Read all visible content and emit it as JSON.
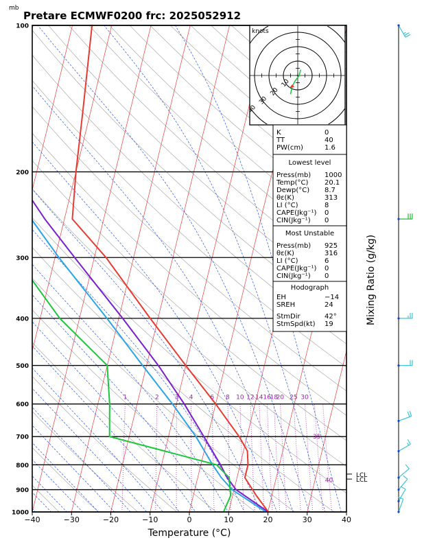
{
  "title": "Pretare ECMWF0200 frc: 2025052912",
  "y_unit_label": "mb",
  "chart_data": {
    "type": "line",
    "subtype": "skew-t log-p sounding",
    "xlabel": "Temperature (°C)",
    "ylabel_right": "Mixing Ratio (g/kg)",
    "x_ticks": [
      -40,
      -30,
      -20,
      -10,
      0,
      10,
      20,
      30,
      40
    ],
    "pressure_levels": [
      100,
      200,
      300,
      400,
      500,
      600,
      700,
      800,
      900,
      1000
    ],
    "xlim": [
      -40,
      40
    ],
    "ylim": [
      1000,
      100
    ],
    "y_scale": "log",
    "series": [],
    "temperature": [
      {
        "p": 1000,
        "t": 20.1
      },
      {
        "p": 925,
        "t": 16
      },
      {
        "p": 850,
        "t": 12
      },
      {
        "p": 800,
        "t": 12
      },
      {
        "p": 750,
        "t": 11
      },
      {
        "p": 700,
        "t": 8
      },
      {
        "p": 600,
        "t": 0
      },
      {
        "p": 500,
        "t": -10
      },
      {
        "p": 400,
        "t": -22
      },
      {
        "p": 300,
        "t": -37
      },
      {
        "p": 250,
        "t": -48
      },
      {
        "p": 200,
        "t": -50
      },
      {
        "p": 150,
        "t": -52
      },
      {
        "p": 100,
        "t": -55
      }
    ],
    "dewpoint": [
      {
        "p": 1000,
        "t": 8.7
      },
      {
        "p": 925,
        "t": 9.5
      },
      {
        "p": 850,
        "t": 8
      },
      {
        "p": 800,
        "t": 4
      },
      {
        "p": 750,
        "t": -10
      },
      {
        "p": 700,
        "t": -25
      },
      {
        "p": 600,
        "t": -27
      },
      {
        "p": 500,
        "t": -30
      },
      {
        "p": 400,
        "t": -45
      },
      {
        "p": 300,
        "t": -60
      },
      {
        "p": 250,
        "t": -70
      },
      {
        "p": 200,
        "t": -80
      },
      {
        "p": 150,
        "t": -90
      },
      {
        "p": 100,
        "t": -102
      }
    ],
    "parcel": [
      {
        "p": 1000,
        "t": 20.1
      },
      {
        "p": 900,
        "t": 10.5
      },
      {
        "p": 850,
        "t": 7.5
      },
      {
        "p": 800,
        "t": 5
      },
      {
        "p": 700,
        "t": -1
      },
      {
        "p": 600,
        "t": -8
      },
      {
        "p": 500,
        "t": -17
      },
      {
        "p": 400,
        "t": -29
      },
      {
        "p": 300,
        "t": -45
      },
      {
        "p": 250,
        "t": -55
      },
      {
        "p": 200,
        "t": -66
      },
      {
        "p": 150,
        "t": -81
      },
      {
        "p": 125,
        "t": -90
      }
    ],
    "env_other": [
      {
        "p": 1000,
        "t": 19.5
      },
      {
        "p": 900,
        "t": 9.5
      },
      {
        "p": 850,
        "t": 6
      },
      {
        "p": 800,
        "t": 3
      },
      {
        "p": 700,
        "t": -3
      },
      {
        "p": 600,
        "t": -11
      },
      {
        "p": 500,
        "t": -21
      },
      {
        "p": 400,
        "t": -33
      },
      {
        "p": 300,
        "t": -49
      },
      {
        "p": 200,
        "t": -70
      },
      {
        "p": 150,
        "t": -85
      },
      {
        "p": 110,
        "t": -97
      }
    ],
    "mixing_ratio_labels": [
      "1",
      "2",
      "3",
      "4",
      "6",
      "8",
      "10",
      "12",
      "14",
      "16",
      "18",
      "20",
      "25",
      "30",
      "35",
      "40"
    ],
    "lcl_labels": [
      "LCL",
      "LCL"
    ],
    "hodograph": {
      "unit": "knots",
      "ring_labels": [
        "10",
        "20",
        "30",
        "40"
      ],
      "points": [
        {
          "u": 2,
          "v": 4
        },
        {
          "u": 1,
          "v": 0
        },
        {
          "u": -2,
          "v": -4
        },
        {
          "u": -4,
          "v": -8
        },
        {
          "u": -5,
          "v": -13
        }
      ]
    },
    "wind_barbs": [
      {
        "p": 100,
        "dir": 330,
        "spd": 25,
        "color": "#3fc6d6"
      },
      {
        "p": 250,
        "dir": 270,
        "spd": 30,
        "color": "#22c030"
      },
      {
        "p": 400,
        "dir": 270,
        "spd": 25,
        "color": "#3fc6d6"
      },
      {
        "p": 500,
        "dir": 270,
        "spd": 20,
        "color": "#3fc6d6"
      },
      {
        "p": 650,
        "dir": 250,
        "spd": 20,
        "color": "#3fc6d6"
      },
      {
        "p": 750,
        "dir": 240,
        "spd": 15,
        "color": "#3fc6d6"
      },
      {
        "p": 850,
        "dir": 230,
        "spd": 10,
        "color": "#3fc6d6"
      },
      {
        "p": 900,
        "dir": 220,
        "spd": 10,
        "color": "#3fc6d6"
      },
      {
        "p": 950,
        "dir": 210,
        "spd": 10,
        "color": "#3fc6d6"
      },
      {
        "p": 1000,
        "dir": 200,
        "spd": 10,
        "color": "#3fc6d6"
      }
    ]
  },
  "indices": {
    "top": [
      {
        "label": "K",
        "value": "0"
      },
      {
        "label": "TT",
        "value": "40"
      },
      {
        "label": "PW(cm)",
        "value": "1.6"
      }
    ],
    "lowest_level": {
      "header": "Lowest level",
      "rows": [
        {
          "label": "Press(mb)",
          "value": "1000"
        },
        {
          "label": "Temp(°C)",
          "value": "20.1"
        },
        {
          "label": "Dewp(°C)",
          "value": "8.7"
        },
        {
          "label": "θε(K)",
          "value": "313"
        },
        {
          "label": "LI (°C)",
          "value": "8"
        },
        {
          "label": "CAPE(Jkg⁻¹)",
          "value": "0"
        },
        {
          "label": "CIN(Jkg⁻¹)",
          "value": "0"
        }
      ]
    },
    "most_unstable": {
      "header": "Most Unstable",
      "rows": [
        {
          "label": "Press(mb)",
          "value": "925"
        },
        {
          "label": "θε(K)",
          "value": "316"
        },
        {
          "label": "LI (°C)",
          "value": "6"
        },
        {
          "label": "CAPE(Jkg⁻¹)",
          "value": "0"
        },
        {
          "label": "CIN(Jkg⁻¹)",
          "value": "0"
        }
      ]
    },
    "hodograph_box": {
      "header": "Hodograph",
      "rows": [
        {
          "label": "EH",
          "value": "−14"
        },
        {
          "label": "SREH",
          "value": "24"
        },
        {
          "label": "StmDir",
          "value": "42°"
        },
        {
          "label": "StmSpd(kt)",
          "value": "19"
        }
      ]
    }
  },
  "colors": {
    "temperature": "#e83a30",
    "dewpoint": "#18c83a",
    "parcel": "#7a1fd0",
    "env_other": "#2aa4e8",
    "isotherm": "#ee3b3b",
    "dry_adiabat": "#aaaaaa",
    "moist_adiabat": "#2a55e8",
    "mixing_ratio": "#b22db5",
    "barb": "#3fc6d6"
  }
}
